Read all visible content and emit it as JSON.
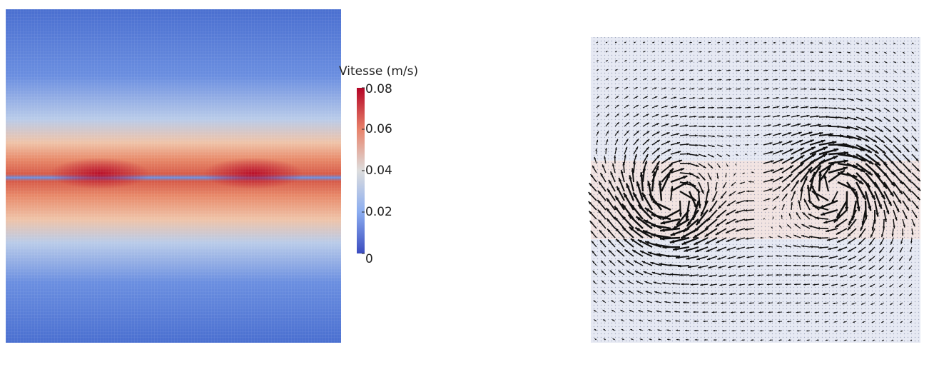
{
  "colorbar": {
    "title": "Vitesse (m/s)",
    "range": [
      0,
      0.08
    ],
    "ticks": [
      0.08,
      0.06,
      0.04,
      0.02,
      0
    ]
  }
}
